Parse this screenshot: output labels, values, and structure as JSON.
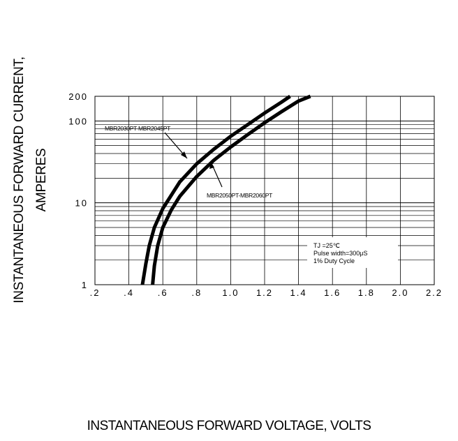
{
  "chart_data": {
    "type": "line",
    "title": "",
    "xlabel": "INSTANTANEOUS FORWARD VOLTAGE,  VOLTS",
    "ylabel_line1": "INSTANTANEOUS FORWARD CURRENT,",
    "ylabel_line2": "AMPERES",
    "xlim": [
      0.2,
      2.2
    ],
    "ylim": [
      1,
      200
    ],
    "y_scale": "log",
    "grid": true,
    "x_tick_labels": [
      ".2",
      ".4",
      ".6",
      ".8",
      "1.0",
      "1.2",
      "1.4",
      "1.6",
      "1.8",
      "2.0",
      "2.2"
    ],
    "y_tick_labels": [
      "1",
      "10",
      "100",
      "200"
    ],
    "series": [
      {
        "name": "MBR2030PT-MBR2045PT",
        "x": [
          0.48,
          0.5,
          0.52,
          0.55,
          0.6,
          0.7,
          0.8,
          0.9,
          1.0,
          1.1,
          1.2,
          1.3,
          1.35
        ],
        "y": [
          1,
          1.8,
          3,
          5,
          8.5,
          18,
          30,
          45,
          65,
          90,
          125,
          170,
          200
        ]
      },
      {
        "name": "MBR2050PT-MBR2060PT",
        "x": [
          0.54,
          0.55,
          0.57,
          0.6,
          0.65,
          0.7,
          0.8,
          0.9,
          1.0,
          1.1,
          1.2,
          1.3,
          1.4,
          1.47
        ],
        "y": [
          1,
          1.7,
          3,
          5,
          8.2,
          12,
          21,
          33,
          48,
          68,
          95,
          130,
          175,
          200
        ]
      }
    ],
    "annotation": {
      "line1": "TJ =25℃",
      "line2": "Pulse width=300μS",
      "line3": "1%  Duty Cycle"
    }
  }
}
